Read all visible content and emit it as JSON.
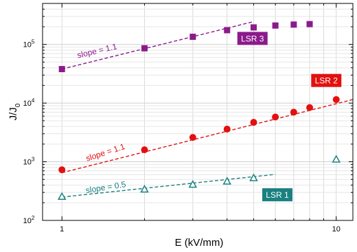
{
  "chart_data": {
    "type": "scatter",
    "xlabel": "E (kV/mm)",
    "ylabel": "J/J",
    "ylabel_subscript": "0",
    "xscale": "log",
    "yscale": "log",
    "xlim": [
      0.85,
      11.5
    ],
    "ylim": [
      100,
      500000
    ],
    "x_tick_labels": [
      "1",
      "10"
    ],
    "y_tick_labels": [
      {
        "base": "10",
        "exp": "2"
      },
      {
        "base": "10",
        "exp": "3"
      },
      {
        "base": "10",
        "exp": "4"
      },
      {
        "base": "10",
        "exp": "5"
      }
    ],
    "grid": true,
    "series": [
      {
        "name": "LSR 3",
        "color": "#8b1a8b",
        "marker": "square",
        "x": [
          1,
          2,
          3,
          4,
          5,
          6,
          7,
          8
        ],
        "y": [
          38000,
          86000,
          135000,
          175000,
          195000,
          210000,
          218000,
          222000
        ],
        "fit": {
          "label": "slope = 1.1",
          "x": [
            1,
            5
          ],
          "y": [
            38000,
            245000
          ]
        }
      },
      {
        "name": "LSR 2",
        "color": "#e31010",
        "marker": "circle",
        "x": [
          1,
          2,
          3,
          4,
          5,
          6,
          7,
          8,
          10
        ],
        "y": [
          730,
          1600,
          2600,
          3600,
          4700,
          5800,
          7000,
          8400,
          11500
        ],
        "fit": {
          "label": "slope = 1.1",
          "x": [
            1,
            11.5
          ],
          "y": [
            650,
            11500
          ]
        }
      },
      {
        "name": "LSR 1",
        "color": "#1a8080",
        "marker": "triangle",
        "x": [
          1,
          2,
          3,
          4,
          5,
          10
        ],
        "y": [
          255,
          340,
          410,
          465,
          530,
          1100
        ],
        "fit": {
          "label": "slope = 0.5",
          "x": [
            1,
            6
          ],
          "y": [
            250,
            610
          ]
        }
      }
    ]
  }
}
